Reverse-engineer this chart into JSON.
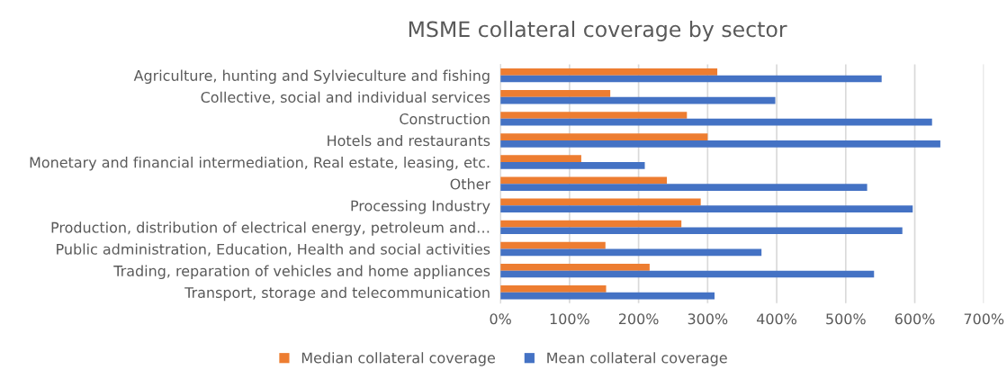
{
  "chart_data": {
    "type": "bar",
    "orientation": "horizontal",
    "title": "MSME collateral coverage by sector",
    "categories": [
      "Agriculture, hunting and Sylvieculture and fishing",
      "Collective, social and individual services",
      "Construction",
      "Hotels and restaurants",
      "Monetary and financial intermediation, Real estate, leasing, etc.",
      "Other",
      "Processing Industry",
      "Production, distribution of electrical energy, petroleum and…",
      "Public administration, Education, Health and social activities",
      "Trading, reparation of vehicles and home appliances",
      "Transport, storage and telecommunication"
    ],
    "series": [
      {
        "name": "Median collateral coverage",
        "color": "#ed7d31",
        "values": [
          314,
          159,
          270,
          300,
          117,
          241,
          290,
          262,
          152,
          216,
          153
        ]
      },
      {
        "name": "Mean collateral coverage",
        "color": "#4472c4",
        "values": [
          552,
          398,
          625,
          637,
          209,
          531,
          597,
          582,
          378,
          541,
          310
        ]
      }
    ],
    "xlim": [
      0,
      700
    ],
    "xticks": [
      {
        "value": 0,
        "label": "0%"
      },
      {
        "value": 100,
        "label": "100%"
      },
      {
        "value": 200,
        "label": "200%"
      },
      {
        "value": 300,
        "label": "300%"
      },
      {
        "value": 400,
        "label": "400%"
      },
      {
        "value": 500,
        "label": "500%"
      },
      {
        "value": 600,
        "label": "600%"
      },
      {
        "value": 700,
        "label": "700%"
      }
    ],
    "grid": "x",
    "legend": "bottom"
  }
}
